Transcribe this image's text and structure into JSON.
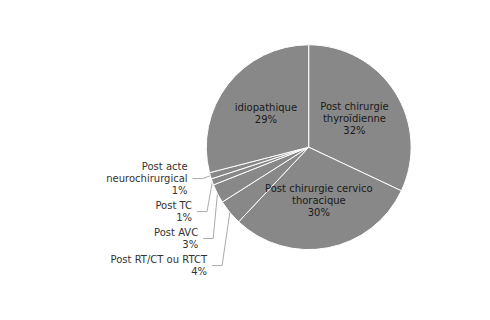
{
  "chart_data": {
    "type": "pie",
    "categories": [
      "Post chirurgie\nthyroïdienne\n32%",
      "Post chirurgie cervico\nthoracique\n30%",
      "Post RT/CT ou RTCT\n4%",
      "Post AVC\n3%",
      "Post TC\n1%",
      "Post acte\nneurochirurgical\n1%",
      "idiopathique\n29%"
    ],
    "values": [
      32,
      30,
      4,
      3,
      1,
      1,
      29
    ],
    "color": "#888888"
  }
}
